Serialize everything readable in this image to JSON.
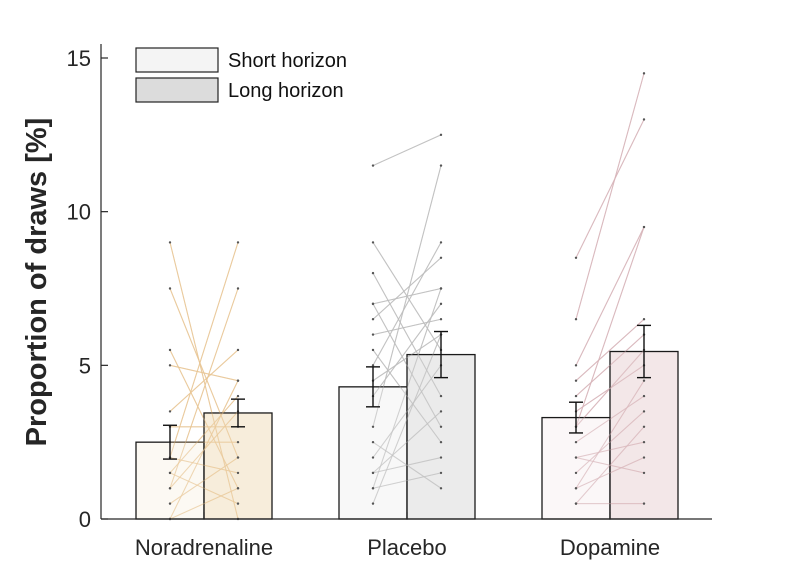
{
  "chart_data": {
    "type": "bar",
    "ylabel": "Proportion of draws [%]",
    "ylim": [
      0,
      15
    ],
    "yticks": [
      0,
      5,
      10,
      15
    ],
    "grid": false,
    "legend_position": "top-left",
    "categories": [
      "Noradrenaline",
      "Placebo",
      "Dopamine"
    ],
    "series": [
      {
        "name": "Short horizon",
        "values": [
          2.5,
          4.3,
          3.3
        ],
        "errors": [
          0.55,
          0.65,
          0.5
        ]
      },
      {
        "name": "Long horizon",
        "values": [
          3.45,
          5.35,
          5.45
        ],
        "errors": [
          0.45,
          0.75,
          0.85
        ]
      }
    ],
    "colors": {
      "short": [
        "#f9f4ea",
        "#f2f2f2",
        "#f7f1f2"
      ],
      "long": [
        "#f1debd",
        "#dbdbdb",
        "#ead4d6"
      ],
      "lines": [
        "#e8c694",
        "#bdbdbd",
        "#d6b3b8"
      ],
      "legend_short": "#f4f4f4",
      "legend_long": "#dcdcdc"
    },
    "participants": [
      [
        [
          9.0,
          0.0
        ],
        [
          7.5,
          2.0
        ],
        [
          5.5,
          1.0
        ],
        [
          5.0,
          4.5
        ],
        [
          3.5,
          5.5
        ],
        [
          3.0,
          3.0
        ],
        [
          2.5,
          2.5
        ],
        [
          2.0,
          9.0
        ],
        [
          2.0,
          1.5
        ],
        [
          1.5,
          4.0
        ],
        [
          1.5,
          0.5
        ],
        [
          1.0,
          7.5
        ],
        [
          1.0,
          3.5
        ],
        [
          0.5,
          2.0
        ],
        [
          0.0,
          1.0
        ],
        [
          0.0,
          4.5
        ]
      ],
      [
        [
          11.5,
          12.5
        ],
        [
          9.0,
          5.5
        ],
        [
          8.0,
          4.0
        ],
        [
          7.0,
          7.5
        ],
        [
          7.0,
          3.0
        ],
        [
          6.5,
          8.5
        ],
        [
          6.0,
          6.5
        ],
        [
          5.5,
          2.5
        ],
        [
          5.0,
          9.0
        ],
        [
          4.5,
          6.0
        ],
        [
          4.0,
          7.0
        ],
        [
          3.0,
          11.5
        ],
        [
          2.5,
          1.0
        ],
        [
          2.0,
          5.0
        ],
        [
          1.5,
          3.5
        ],
        [
          1.0,
          7.5
        ],
        [
          0.5,
          6.0
        ],
        [
          1.5,
          2.0
        ],
        [
          1.0,
          1.5
        ]
      ],
      [
        [
          8.5,
          13.0
        ],
        [
          6.5,
          14.5
        ],
        [
          5.0,
          9.5
        ],
        [
          4.5,
          6.5
        ],
        [
          4.0,
          6.0
        ],
        [
          3.5,
          5.0
        ],
        [
          3.0,
          5.5
        ],
        [
          2.5,
          4.0
        ],
        [
          2.0,
          2.5
        ],
        [
          1.5,
          3.5
        ],
        [
          1.0,
          2.0
        ],
        [
          0.5,
          0.5
        ],
        [
          3.0,
          9.5
        ],
        [
          2.0,
          1.5
        ],
        [
          0.5,
          3.0
        ],
        [
          1.0,
          4.5
        ]
      ]
    ]
  }
}
